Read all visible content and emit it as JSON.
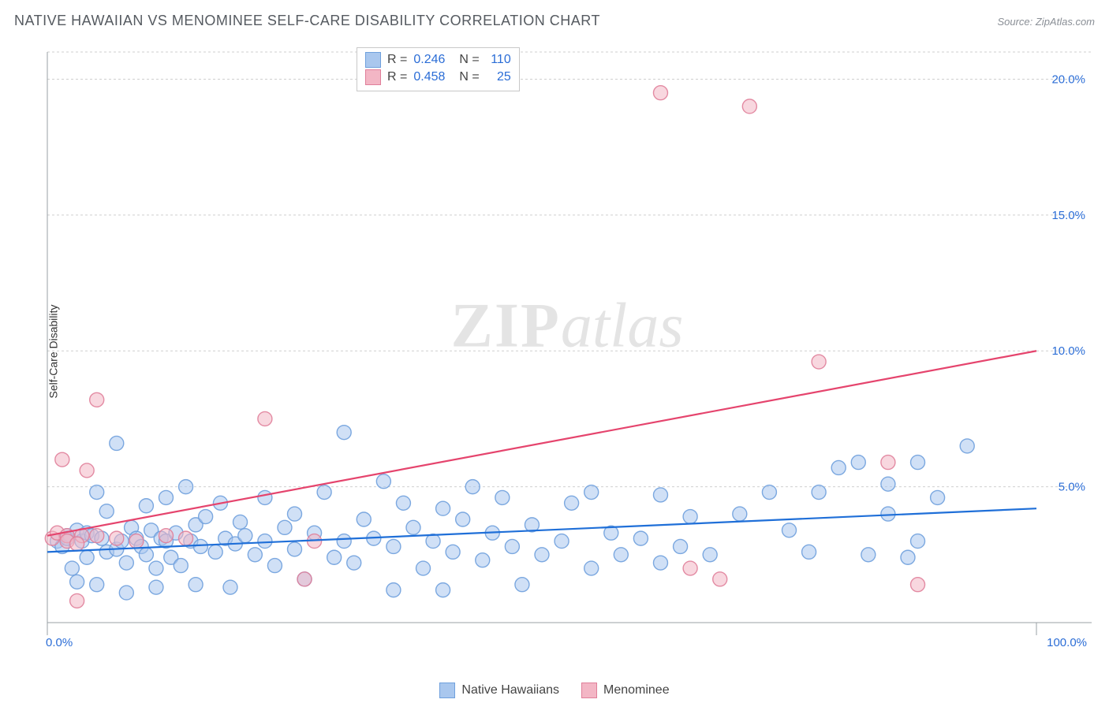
{
  "title": "NATIVE HAWAIIAN VS MENOMINEE SELF-CARE DISABILITY CORRELATION CHART",
  "source_label": "Source: ZipAtlas.com",
  "ylabel": "Self-Care Disability",
  "watermark_zip": "ZIP",
  "watermark_atlas": "atlas",
  "chart": {
    "type": "scatter",
    "background_color": "#ffffff",
    "grid_color": "#cfcfcf",
    "axis_color": "#9aa0a6",
    "tick_color": "#2b6dd6",
    "tick_fontsize": 15,
    "label_fontsize": 14,
    "title_fontsize": 18,
    "title_color": "#555a60",
    "xlim": [
      0,
      100
    ],
    "ylim": [
      0,
      21
    ],
    "xtick_min_label": "0.0%",
    "xtick_max_label": "100.0%",
    "ytick_values": [
      5.0,
      10.0,
      15.0,
      20.0
    ],
    "ytick_labels": [
      "5.0%",
      "10.0%",
      "15.0%",
      "20.0%"
    ],
    "marker_radius": 9,
    "marker_opacity": 0.55,
    "marker_stroke_opacity": 0.9,
    "series": [
      {
        "name": "Native Hawaiians",
        "fill_color": "#a9c7ee",
        "stroke_color": "#6fa0dd",
        "line_color": "#1f6fd8",
        "line_width": 2.2,
        "r_value": "0.246",
        "n_value": "110",
        "trend": {
          "x1": 0,
          "y1": 2.6,
          "x2": 100,
          "y2": 4.2
        },
        "points": [
          [
            1,
            3.0
          ],
          [
            1.5,
            2.8
          ],
          [
            2,
            3.2
          ],
          [
            2,
            3.1
          ],
          [
            2.5,
            2.0
          ],
          [
            3,
            1.5
          ],
          [
            3,
            3.4
          ],
          [
            3.5,
            3.0
          ],
          [
            4,
            2.4
          ],
          [
            4,
            3.3
          ],
          [
            4.5,
            3.2
          ],
          [
            5,
            4.8
          ],
          [
            5,
            1.4
          ],
          [
            5.5,
            3.1
          ],
          [
            6,
            2.6
          ],
          [
            6,
            4.1
          ],
          [
            7,
            6.6
          ],
          [
            7,
            2.7
          ],
          [
            7.5,
            3.0
          ],
          [
            8,
            2.2
          ],
          [
            8,
            1.1
          ],
          [
            8.5,
            3.5
          ],
          [
            9,
            3.1
          ],
          [
            9.5,
            2.8
          ],
          [
            10,
            4.3
          ],
          [
            10,
            2.5
          ],
          [
            10.5,
            3.4
          ],
          [
            11,
            2.0
          ],
          [
            11,
            1.3
          ],
          [
            11.5,
            3.1
          ],
          [
            12,
            4.6
          ],
          [
            12,
            3.0
          ],
          [
            12.5,
            2.4
          ],
          [
            13,
            3.3
          ],
          [
            13.5,
            2.1
          ],
          [
            14,
            5.0
          ],
          [
            14.5,
            3.0
          ],
          [
            15,
            1.4
          ],
          [
            15,
            3.6
          ],
          [
            15.5,
            2.8
          ],
          [
            16,
            3.9
          ],
          [
            17,
            2.6
          ],
          [
            17.5,
            4.4
          ],
          [
            18,
            3.1
          ],
          [
            18.5,
            1.3
          ],
          [
            19,
            2.9
          ],
          [
            19.5,
            3.7
          ],
          [
            20,
            3.2
          ],
          [
            21,
            2.5
          ],
          [
            22,
            4.6
          ],
          [
            22,
            3.0
          ],
          [
            23,
            2.1
          ],
          [
            24,
            3.5
          ],
          [
            25,
            4.0
          ],
          [
            25,
            2.7
          ],
          [
            26,
            1.6
          ],
          [
            27,
            3.3
          ],
          [
            28,
            4.8
          ],
          [
            29,
            2.4
          ],
          [
            30,
            7.0
          ],
          [
            30,
            3.0
          ],
          [
            31,
            2.2
          ],
          [
            32,
            3.8
          ],
          [
            33,
            3.1
          ],
          [
            34,
            5.2
          ],
          [
            35,
            2.8
          ],
          [
            35,
            1.2
          ],
          [
            36,
            4.4
          ],
          [
            37,
            3.5
          ],
          [
            38,
            2.0
          ],
          [
            39,
            3.0
          ],
          [
            40,
            4.2
          ],
          [
            40,
            1.2
          ],
          [
            41,
            2.6
          ],
          [
            42,
            3.8
          ],
          [
            43,
            5.0
          ],
          [
            44,
            2.3
          ],
          [
            45,
            3.3
          ],
          [
            46,
            4.6
          ],
          [
            47,
            2.8
          ],
          [
            48,
            1.4
          ],
          [
            49,
            3.6
          ],
          [
            50,
            2.5
          ],
          [
            52,
            3.0
          ],
          [
            53,
            4.4
          ],
          [
            55,
            2.0
          ],
          [
            55,
            4.8
          ],
          [
            57,
            3.3
          ],
          [
            58,
            2.5
          ],
          [
            60,
            3.1
          ],
          [
            62,
            4.7
          ],
          [
            62,
            2.2
          ],
          [
            64,
            2.8
          ],
          [
            65,
            3.9
          ],
          [
            67,
            2.5
          ],
          [
            70,
            4.0
          ],
          [
            73,
            4.8
          ],
          [
            75,
            3.4
          ],
          [
            77,
            2.6
          ],
          [
            78,
            4.8
          ],
          [
            80,
            5.7
          ],
          [
            82,
            5.9
          ],
          [
            83,
            2.5
          ],
          [
            85,
            4.0
          ],
          [
            85,
            5.1
          ],
          [
            87,
            2.4
          ],
          [
            88,
            3.0
          ],
          [
            90,
            4.6
          ],
          [
            93,
            6.5
          ],
          [
            88,
            5.9
          ]
        ]
      },
      {
        "name": "Menominee",
        "fill_color": "#f3b6c5",
        "stroke_color": "#e07f9a",
        "line_color": "#e5446d",
        "line_width": 2.2,
        "r_value": "0.458",
        "n_value": "25",
        "trend": {
          "x1": 0,
          "y1": 3.2,
          "x2": 100,
          "y2": 10.0
        },
        "points": [
          [
            0.5,
            3.1
          ],
          [
            1,
            3.3
          ],
          [
            1.5,
            6.0
          ],
          [
            2,
            3.2
          ],
          [
            2,
            3.0
          ],
          [
            3,
            0.8
          ],
          [
            3.5,
            3.2
          ],
          [
            4,
            5.6
          ],
          [
            5,
            3.2
          ],
          [
            5,
            8.2
          ],
          [
            7,
            3.1
          ],
          [
            9,
            3.0
          ],
          [
            12,
            3.2
          ],
          [
            14,
            3.1
          ],
          [
            22,
            7.5
          ],
          [
            27,
            3.0
          ],
          [
            62,
            19.5
          ],
          [
            65,
            2.0
          ],
          [
            68,
            1.6
          ],
          [
            71,
            19.0
          ],
          [
            78,
            9.6
          ],
          [
            85,
            5.9
          ],
          [
            88,
            1.4
          ],
          [
            26,
            1.6
          ],
          [
            3,
            2.9
          ]
        ]
      }
    ],
    "bottom_legend": [
      {
        "label": "Native Hawaiians",
        "fill": "#a9c7ee",
        "stroke": "#6fa0dd"
      },
      {
        "label": "Menominee",
        "fill": "#f3b6c5",
        "stroke": "#e07f9a"
      }
    ]
  }
}
